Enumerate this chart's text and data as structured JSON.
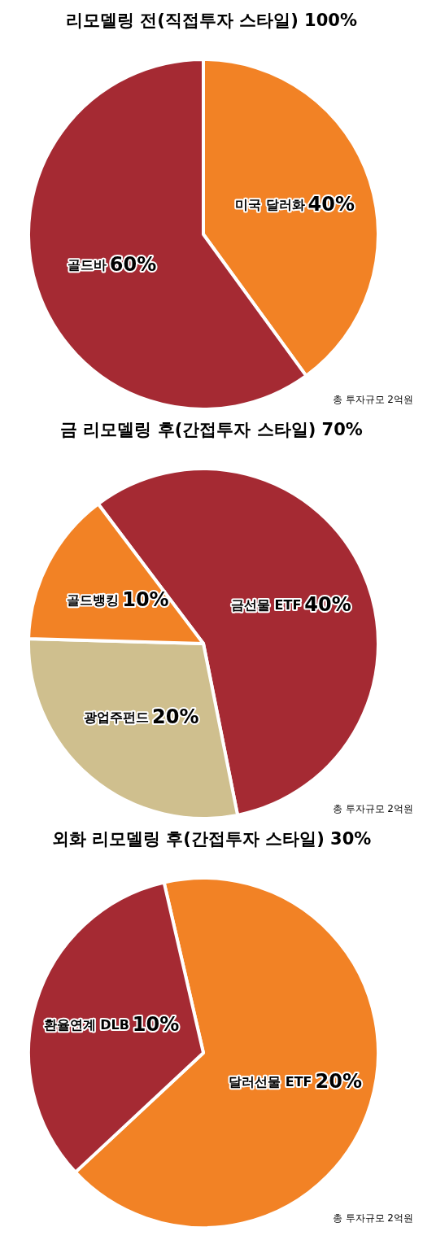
{
  "chart_data": [
    {
      "type": "pie",
      "title": "리모델링 전(직접투자 스타일) 100%",
      "categories": [
        "미국 달러화",
        "골드바"
      ],
      "values": [
        40,
        60
      ],
      "value_labels": [
        "40%",
        "60%"
      ],
      "colors": [
        "#f28225",
        "#a52a33"
      ],
      "annotations": [
        "총 투자규모 2억원"
      ]
    },
    {
      "type": "pie",
      "title": "금 리모델링 후(간접투자 스타일) 70%",
      "categories": [
        "금선물 ETF",
        "광업주펀드",
        "골드뱅킹"
      ],
      "values": [
        40,
        20,
        10
      ],
      "value_labels": [
        "40%",
        "20%",
        "10%"
      ],
      "colors": [
        "#a52a33",
        "#cfbf8e",
        "#f28225"
      ],
      "annotations": [
        "총 투자규모 2억원"
      ]
    },
    {
      "type": "pie",
      "title": "외화 리모델링 후(간접투자 스타일) 30%",
      "categories": [
        "달러선물 ETF",
        "환율연계 DLB"
      ],
      "values": [
        20,
        10
      ],
      "value_labels": [
        "20%",
        "10%"
      ],
      "colors": [
        "#f28225",
        "#a52a33"
      ],
      "annotations": [
        "총 투자규모 2억원"
      ]
    }
  ]
}
